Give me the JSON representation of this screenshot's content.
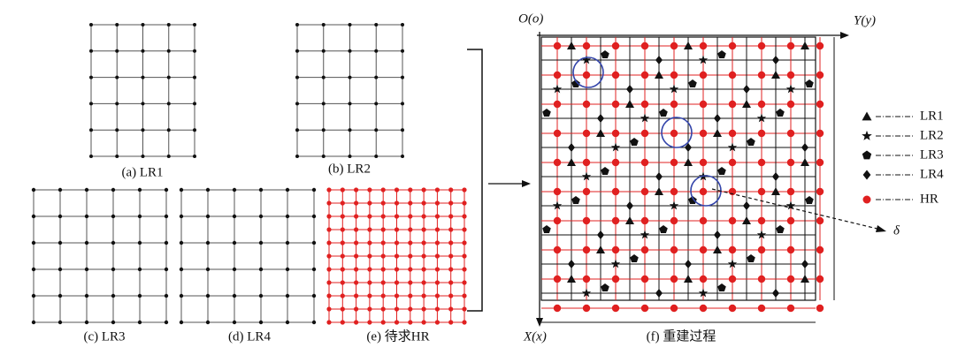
{
  "captions": {
    "a": "(a) LR1",
    "b": "(b) LR2",
    "c": "(c) LR3",
    "d": "(d) LR4",
    "e": "(e) 待求HR",
    "f": "(f) 重建过程"
  },
  "axes": {
    "origin": "O(o)",
    "y": "Y(y)",
    "x": "X(x)"
  },
  "legend": [
    "LR1",
    "LR2",
    "LR3",
    "LR4",
    "HR"
  ],
  "delta": "δ"
}
